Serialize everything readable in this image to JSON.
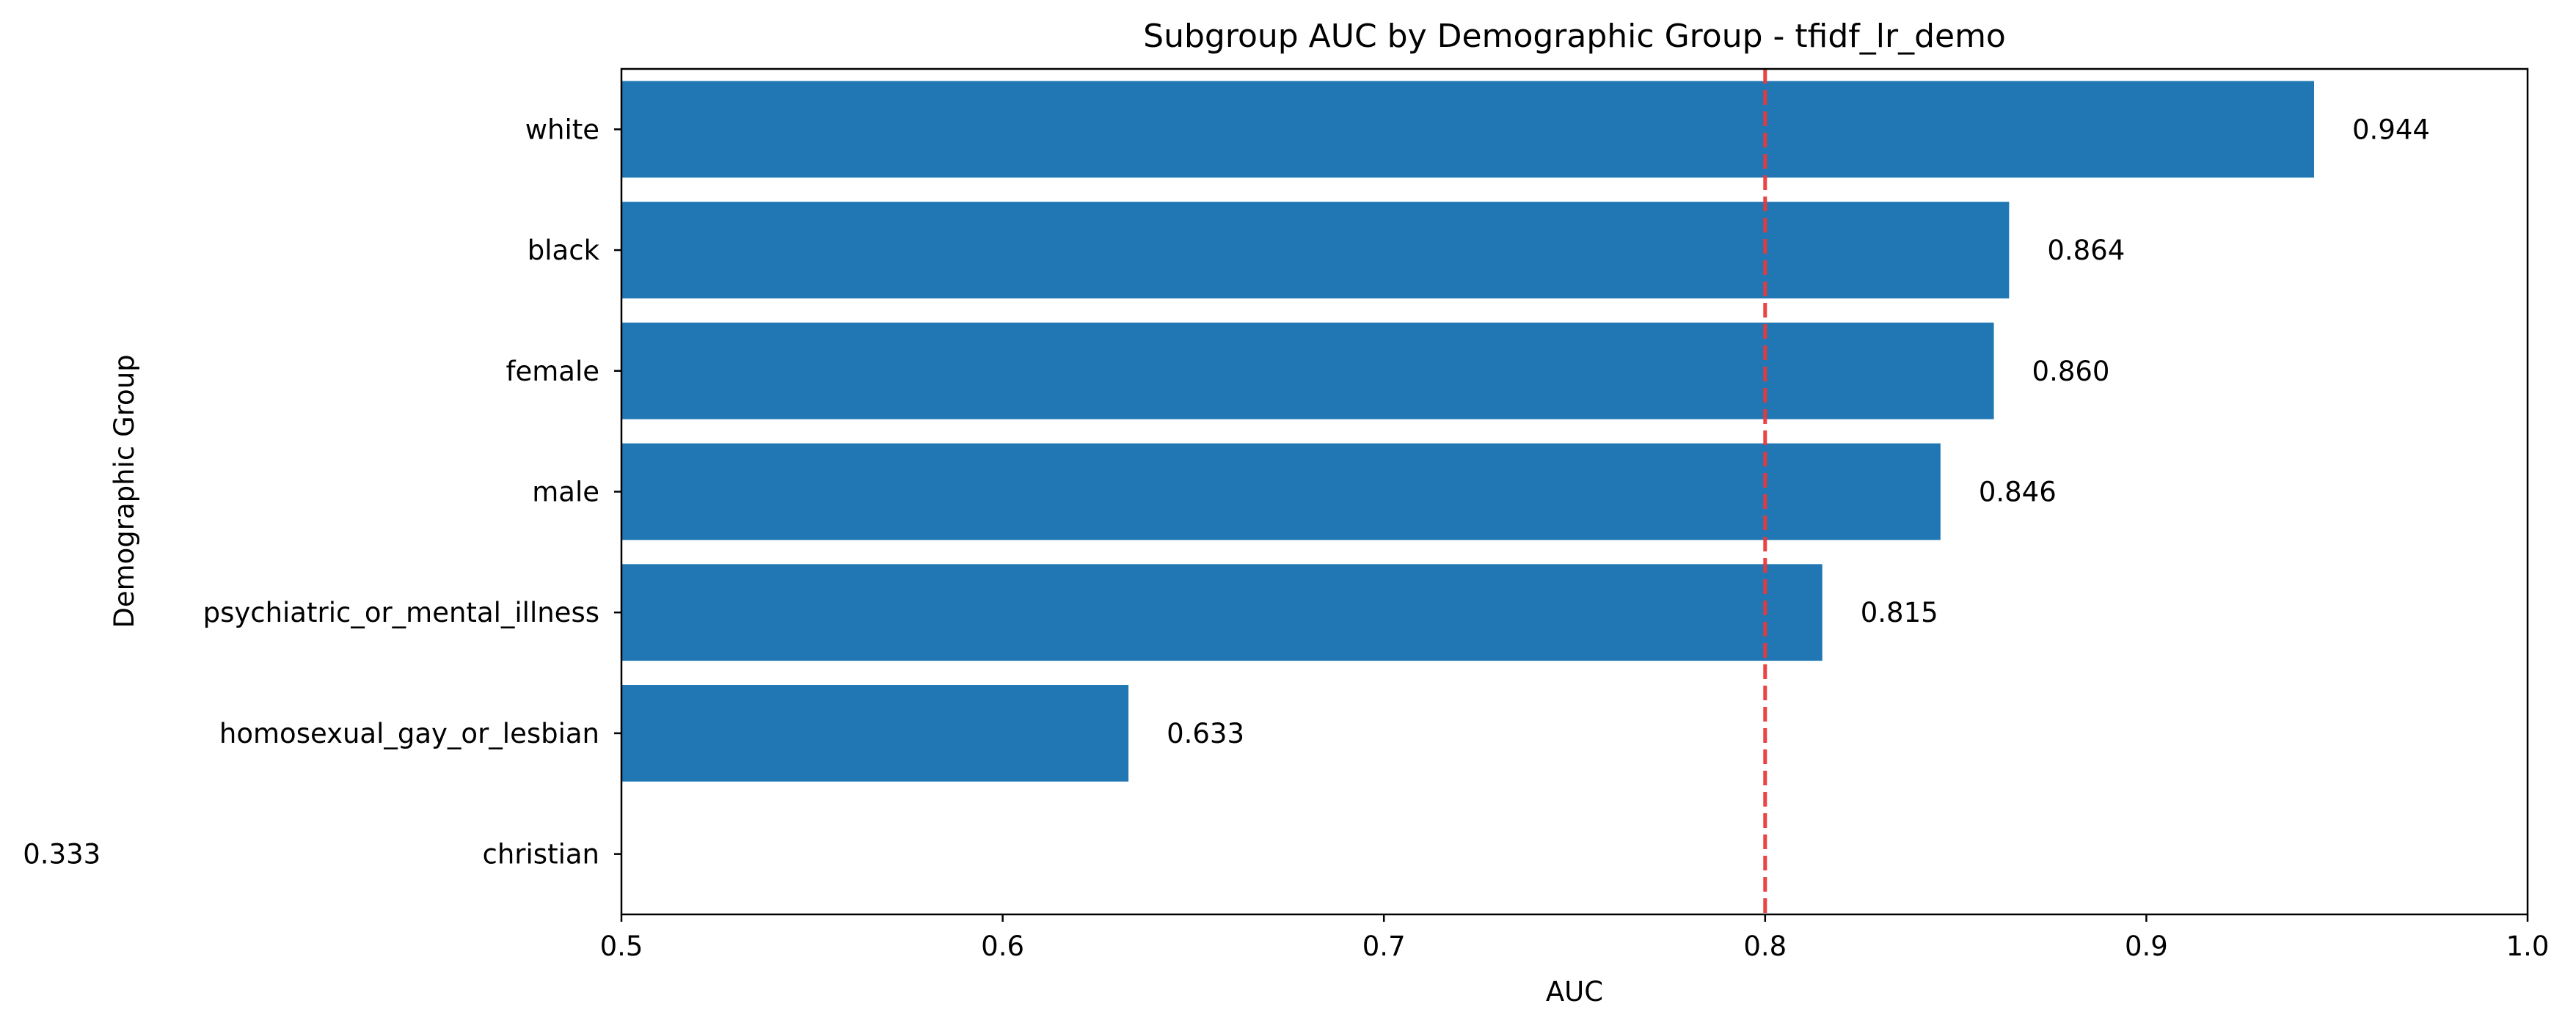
{
  "chart_data": {
    "type": "bar",
    "orientation": "horizontal",
    "title": "Subgroup AUC by Demographic Group - tfidf_lr_demo",
    "xlabel": "AUC",
    "ylabel": "Demographic Group",
    "categories": [
      "white",
      "black",
      "female",
      "male",
      "psychiatric_or_mental_illness",
      "homosexual_gay_or_lesbian",
      "christian"
    ],
    "values": [
      0.944,
      0.864,
      0.86,
      0.846,
      0.815,
      0.633,
      0.333
    ],
    "value_labels": [
      "0.944",
      "0.864",
      "0.860",
      "0.846",
      "0.815",
      "0.633",
      "0.333"
    ],
    "xlim": [
      0.5,
      1.0
    ],
    "x_ticks": [
      0.5,
      0.6,
      0.7,
      0.8,
      0.9,
      1.0
    ],
    "x_tick_labels": [
      "0.5",
      "0.6",
      "0.7",
      "0.8",
      "0.9",
      "1.0"
    ],
    "reference_line": {
      "x": 0.8,
      "style": "dashed",
      "color": "#e8393a"
    },
    "bar_color": "#2077b4",
    "grid": false,
    "legend": "none"
  }
}
